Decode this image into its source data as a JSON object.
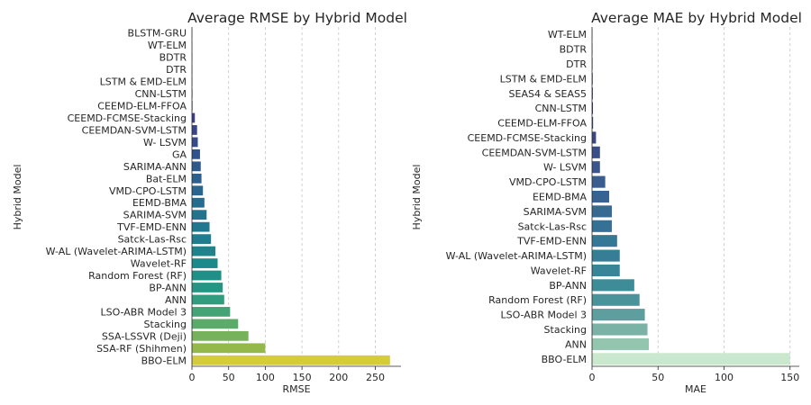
{
  "chart_data": [
    {
      "type": "bar",
      "orientation": "horizontal",
      "title": "Average RMSE by Hybrid Model",
      "xlabel": "RMSE",
      "ylabel": "Hybrid Model",
      "xlim": [
        0,
        285
      ],
      "xticks": [
        0,
        50,
        100,
        150,
        200,
        250
      ],
      "grid": "x",
      "categories": [
        "BLSTM-GRU",
        "WT-ELM",
        "BDTR",
        "DTR",
        "LSTM & EMD-ELM",
        "CNN-LSTM",
        "CEEMD-ELM-FFOA",
        "CEEMD-FCMSE-Stacking",
        "CEEMDAN-SVM-LSTM",
        "W- LSVM",
        "GA",
        "SARIMA-ANN",
        "Bat-ELM",
        "VMD-CPO-LSTM",
        "EEMD-BMA",
        "SARIMA-SVM",
        "TVF-EMD-ENN",
        "Satck-Las-Rsc",
        "W-AL (Wavelet-ARIMA-LSTM)",
        "Wavelet-RF",
        "Random Forest (RF)",
        "BP-ANN",
        "ANN",
        "LSO-ABR Model 3",
        "Stacking",
        "SSA-LSSVR (Deji)",
        "SSA-RF (Shihmen)",
        "BBO-ELM"
      ],
      "values": [
        0.2,
        0.3,
        0.4,
        0.5,
        0.6,
        0.7,
        0.8,
        4,
        7,
        8,
        11,
        12,
        13,
        15,
        17,
        20,
        24,
        26,
        32,
        35,
        40,
        42,
        44,
        52,
        63,
        77,
        100,
        270
      ],
      "colors": [
        "#46085c",
        "#471063",
        "#48186a",
        "#472070",
        "#462777",
        "#432f7d",
        "#403682",
        "#3d3e87",
        "#39458a",
        "#354c8c",
        "#31538d",
        "#2e598d",
        "#2b608e",
        "#28668e",
        "#256c8e",
        "#23728e",
        "#21788e",
        "#1f7e8d",
        "#1d848c",
        "#1c8a8a",
        "#1f9087",
        "#259683",
        "#329d7e",
        "#44a476",
        "#5cab6a",
        "#76b25b",
        "#95b84a",
        "#d4cc3a"
      ]
    },
    {
      "type": "bar",
      "orientation": "horizontal",
      "title": "Average MAE by Hybrid Model",
      "xlabel": "MAE",
      "ylabel": "Hybrid Model",
      "xlim": [
        0,
        157
      ],
      "xticks": [
        0,
        50,
        100,
        150
      ],
      "grid": "x",
      "categories": [
        "WT-ELM",
        "BDTR",
        "DTR",
        "LSTM & EMD-ELM",
        "SEAS4 & SEAS5",
        "CNN-LSTM",
        "CEEMD-ELM-FFOA",
        "CEEMD-FCMSE-Stacking",
        "CEEMDAN-SVM-LSTM",
        "W- LSVM",
        "VMD-CPO-LSTM",
        "EEMD-BMA",
        "SARIMA-SVM",
        "Satck-Las-Rsc",
        "TVF-EMD-ENN",
        "W-AL (Wavelet-ARIMA-LSTM)",
        "Wavelet-RF",
        "BP-ANN",
        "Random Forest (RF)",
        "LSO-ABR Model 3",
        "Stacking",
        "ANN",
        "BBO-ELM"
      ],
      "values": [
        0.2,
        0.3,
        0.4,
        0.5,
        0.6,
        0.7,
        0.8,
        3,
        6,
        6,
        10,
        13,
        15,
        15,
        19,
        21,
        21,
        32,
        36,
        40,
        42,
        43,
        150
      ],
      "colors": [
        "#2c1e3e",
        "#2f2447",
        "#322a50",
        "#35305a",
        "#373664",
        "#383c6e",
        "#394378",
        "#3a4981",
        "#3a4f87",
        "#3a568b",
        "#395d8e",
        "#376390",
        "#366a92",
        "#357194",
        "#357895",
        "#357e96",
        "#378597",
        "#3e8c98",
        "#4a939b",
        "#5f9e9e",
        "#7ab2a5",
        "#94c5ae",
        "#c9e8cd"
      ]
    }
  ]
}
